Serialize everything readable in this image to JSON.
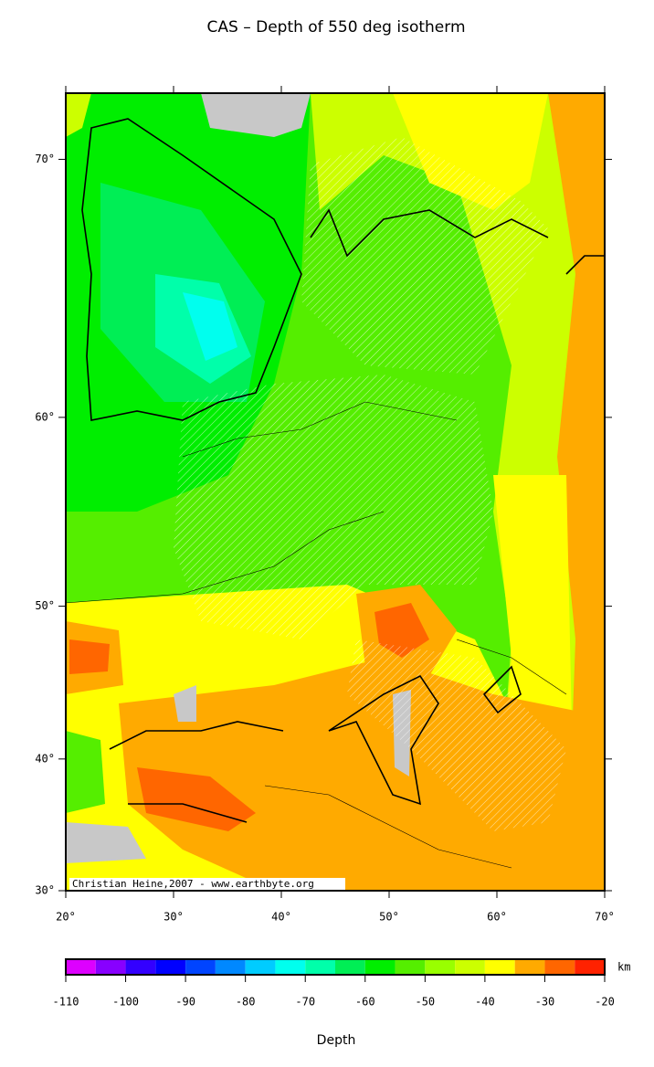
{
  "chart_data": {
    "type": "map",
    "title": "CAS – Depth of 550 deg isotherm",
    "xlim": [
      20,
      70
    ],
    "ylim": [
      30,
      72
    ],
    "projection": "mercator",
    "xticks": [
      {
        "value": 20,
        "label": "20°"
      },
      {
        "value": 30,
        "label": "30°"
      },
      {
        "value": 40,
        "label": "40°"
      },
      {
        "value": 50,
        "label": "50°"
      },
      {
        "value": 60,
        "label": "60°"
      },
      {
        "value": 70,
        "label": "70°"
      }
    ],
    "yticks": [
      {
        "value": 30,
        "label": "30°"
      },
      {
        "value": 40,
        "label": "40°"
      },
      {
        "value": 50,
        "label": "50°"
      },
      {
        "value": 60,
        "label": "60°"
      },
      {
        "value": 70,
        "label": "70°"
      }
    ],
    "credit": "Christian Heine,2007 - www.earthbyte.org",
    "colorbar": {
      "label": "Depth",
      "unit": "km",
      "lim": [
        -110,
        -20
      ],
      "ticks": [
        -110,
        -100,
        -90,
        -80,
        -70,
        -60,
        -50,
        -40,
        -30,
        -20
      ],
      "bins": [
        -110,
        -105,
        -100,
        -95,
        -90,
        -85,
        -80,
        -75,
        -70,
        -65,
        -60,
        -55,
        -50,
        -45,
        -40,
        -35,
        -30,
        -25,
        -20
      ],
      "colors": [
        "#dd00ff",
        "#8800ff",
        "#3300ff",
        "#0000ff",
        "#0044ff",
        "#0088ff",
        "#00ccff",
        "#00ffee",
        "#00ffaa",
        "#00ee55",
        "#00ee00",
        "#55ee00",
        "#99ff00",
        "#ccff00",
        "#ffff00",
        "#ffaa00",
        "#ff6600",
        "#ff2200"
      ]
    }
  }
}
